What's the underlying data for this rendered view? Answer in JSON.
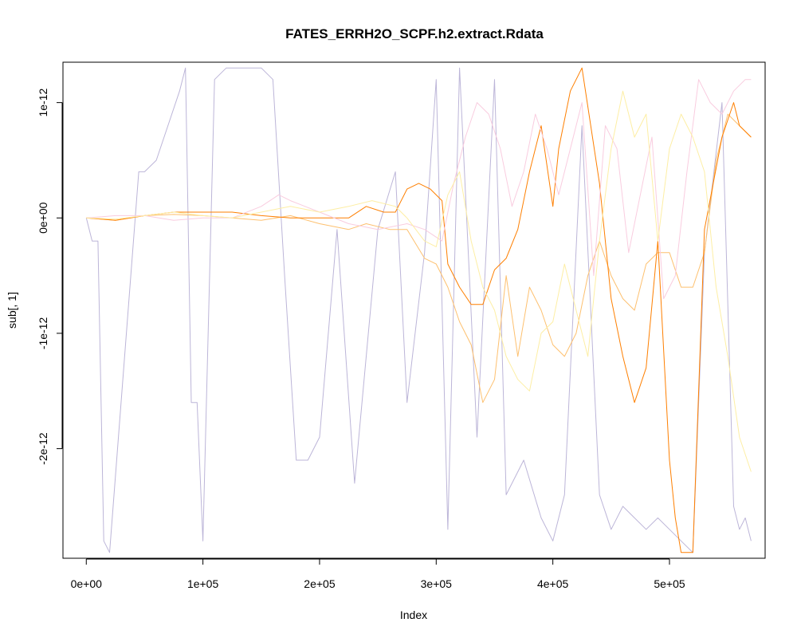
{
  "chart_data": {
    "type": "line",
    "title": "FATES_ERRH2O_SCPF.h2.extract.Rdata",
    "xlabel": "Index",
    "ylabel": "sub[, 1]",
    "xlim": [
      -20000,
      582000
    ],
    "ylim": [
      -2.95e-12,
      1.35e-12
    ],
    "x_ticks": [
      {
        "value": 0,
        "label": "0e+00"
      },
      {
        "value": 100000,
        "label": "1e+05"
      },
      {
        "value": 200000,
        "label": "2e+05"
      },
      {
        "value": 300000,
        "label": "3e+05"
      },
      {
        "value": 400000,
        "label": "4e+05"
      },
      {
        "value": 500000,
        "label": "5e+05"
      }
    ],
    "y_ticks": [
      {
        "value": 1e-12,
        "label": "1e-12"
      },
      {
        "value": 0,
        "label": "0e+00"
      },
      {
        "value": -1e-12,
        "label": "-1e-12"
      },
      {
        "value": -2e-12,
        "label": "-2e-12"
      }
    ],
    "grid": false,
    "legend": "none",
    "series": [
      {
        "color": "#bcb5d8",
        "x": [
          0,
          5000,
          10000,
          15000,
          20000,
          45000,
          50000,
          60000,
          70000,
          80000,
          85000,
          90000,
          95000,
          100000,
          110000,
          120000,
          130000,
          140000,
          150000,
          160000,
          170000,
          180000,
          190000,
          200000,
          215000,
          230000,
          250000,
          265000,
          275000,
          290000,
          300000,
          310000,
          320000,
          335000,
          350000,
          360000,
          375000,
          390000,
          400000,
          410000,
          425000,
          440000,
          450000,
          460000,
          470000,
          480000,
          490000,
          500000,
          510000,
          520000,
          530000,
          545000,
          555000,
          560000,
          565000,
          570000
        ],
        "y": [
          0.0,
          -2e-13,
          -2e-13,
          -2.8e-12,
          -2.9e-12,
          4e-13,
          4e-13,
          5e-13,
          8e-13,
          1.1e-12,
          1.3e-12,
          -1.6e-12,
          -1.6e-12,
          -2.8e-12,
          1.2e-12,
          1.3e-12,
          1.3e-12,
          1.3e-12,
          1.3e-12,
          1.2e-12,
          -5e-13,
          -2.1e-12,
          -2.1e-12,
          -1.9e-12,
          -1e-13,
          -2.3e-12,
          -1e-13,
          4e-13,
          -1.6e-12,
          -3e-13,
          1.2e-12,
          -2.7e-12,
          1.3e-12,
          -1.9e-12,
          1.2e-12,
          -2.4e-12,
          -2.1e-12,
          -2.6e-12,
          -2.8e-12,
          -2.4e-12,
          8e-13,
          -2.4e-12,
          -2.7e-12,
          -2.5e-12,
          -2.6e-12,
          -2.7e-12,
          -2.6e-12,
          -2.7e-12,
          -2.8e-12,
          -2.9e-12,
          -3e-13,
          1e-12,
          -2.5e-12,
          -2.7e-12,
          -2.6e-12,
          -2.8e-12
        ]
      },
      {
        "color": "#fdc06f",
        "x": [
          0,
          25000,
          50000,
          75000,
          100000,
          125000,
          150000,
          175000,
          200000,
          225000,
          240000,
          260000,
          275000,
          290000,
          300000,
          310000,
          320000,
          330000,
          340000,
          350000,
          360000,
          370000,
          380000,
          390000,
          400000,
          410000,
          420000,
          430000,
          440000,
          450000,
          460000,
          470000,
          480000,
          490000,
          500000,
          510000,
          520000,
          530000,
          540000,
          550000,
          560000,
          570000
        ],
        "y": [
          0.0,
          -2e-14,
          2e-14,
          3e-14,
          2e-14,
          0.0,
          -2e-14,
          2e-14,
          -5e-14,
          -1e-13,
          -5e-14,
          -1e-13,
          -1e-13,
          -3.5e-13,
          -4e-13,
          -6e-13,
          -9e-13,
          -1.1e-12,
          -1.6e-12,
          -1.4e-12,
          -5e-13,
          -1.2e-12,
          -6e-13,
          -8e-13,
          -1.1e-12,
          -1.2e-12,
          -1e-12,
          -5e-13,
          -2e-13,
          -5e-13,
          -7e-13,
          -8e-13,
          -4e-13,
          -3e-13,
          -3e-13,
          -6e-13,
          -6e-13,
          -3e-13,
          5e-13,
          9e-13,
          8e-13,
          7e-13
        ]
      },
      {
        "color": "#fe7f00",
        "x": [
          0,
          25000,
          50000,
          75000,
          100000,
          125000,
          150000,
          175000,
          200000,
          225000,
          240000,
          255000,
          265000,
          275000,
          285000,
          295000,
          305000,
          310000,
          320000,
          330000,
          340000,
          350000,
          360000,
          370000,
          380000,
          390000,
          400000,
          405000,
          415000,
          425000,
          440000,
          450000,
          460000,
          470000,
          480000,
          490000,
          500000,
          505000,
          510000,
          520000,
          530000,
          545000,
          555000,
          560000,
          570000
        ],
        "y": [
          0.0,
          -2e-14,
          2e-14,
          5e-14,
          5e-14,
          5e-14,
          2e-14,
          0.0,
          0.0,
          0.0,
          1e-13,
          5e-14,
          5e-14,
          2.5e-13,
          3e-13,
          2.5e-13,
          1.5e-13,
          -4e-13,
          -6e-13,
          -7.5e-13,
          -7.5e-13,
          -4.5e-13,
          -3.5e-13,
          -1e-13,
          4e-13,
          8e-13,
          1e-13,
          6e-13,
          1.1e-12,
          1.3e-12,
          3e-13,
          -7e-13,
          -1.2e-12,
          -1.6e-12,
          -1.3e-12,
          -2e-13,
          -2.1e-12,
          -2.6e-12,
          -2.9e-12,
          -2.9e-12,
          -1e-13,
          7e-13,
          1e-12,
          8e-13,
          7e-13
        ]
      },
      {
        "color": "#f9ccdf",
        "x": [
          0,
          25000,
          50000,
          75000,
          100000,
          125000,
          150000,
          165000,
          175000,
          200000,
          225000,
          250000,
          275000,
          290000,
          305000,
          315000,
          325000,
          335000,
          345000,
          355000,
          365000,
          375000,
          385000,
          395000,
          405000,
          415000,
          425000,
          435000,
          445000,
          455000,
          465000,
          475000,
          485000,
          495000,
          505000,
          515000,
          525000,
          535000,
          545000,
          555000,
          565000,
          570000
        ],
        "y": [
          0.0,
          2e-14,
          2e-14,
          -2e-14,
          0.0,
          0.0,
          1e-13,
          2e-13,
          1.5e-13,
          5e-14,
          -5e-14,
          -1e-13,
          -5e-14,
          -1e-13,
          -2e-13,
          3e-13,
          7e-13,
          1e-12,
          9e-13,
          6e-13,
          1e-13,
          4e-13,
          9e-13,
          6e-13,
          2e-13,
          6e-13,
          1e-12,
          -5e-13,
          8e-13,
          6e-13,
          -3e-13,
          2e-13,
          7e-13,
          -7e-13,
          -5e-13,
          4e-13,
          1.2e-12,
          1e-12,
          9e-13,
          1.1e-12,
          1.2e-12,
          1.2e-12
        ]
      },
      {
        "color": "#fdeea4",
        "x": [
          0,
          25000,
          50000,
          75000,
          100000,
          125000,
          150000,
          175000,
          200000,
          225000,
          245000,
          265000,
          275000,
          290000,
          300000,
          310000,
          320000,
          330000,
          340000,
          350000,
          360000,
          370000,
          380000,
          390000,
          400000,
          410000,
          420000,
          430000,
          440000,
          450000,
          460000,
          470000,
          480000,
          490000,
          500000,
          510000,
          520000,
          530000,
          540000,
          550000,
          560000,
          570000
        ],
        "y": [
          0.0,
          -1e-14,
          2e-14,
          5e-14,
          2e-14,
          0.0,
          5e-14,
          1e-13,
          5e-14,
          1e-13,
          1.5e-13,
          1e-13,
          0.0,
          -2e-13,
          -2.5e-13,
          2e-13,
          4e-13,
          -2e-13,
          -6e-13,
          -8e-13,
          -1.2e-12,
          -1.4e-12,
          -1.5e-12,
          -1e-12,
          -9e-13,
          -4e-13,
          -8e-13,
          -1.2e-12,
          -2e-13,
          6e-13,
          1.1e-12,
          7e-13,
          9e-13,
          -2e-13,
          6e-13,
          9e-13,
          7e-13,
          4e-13,
          -6e-13,
          -1.2e-12,
          -1.9e-12,
          -2.2e-12
        ]
      }
    ]
  }
}
